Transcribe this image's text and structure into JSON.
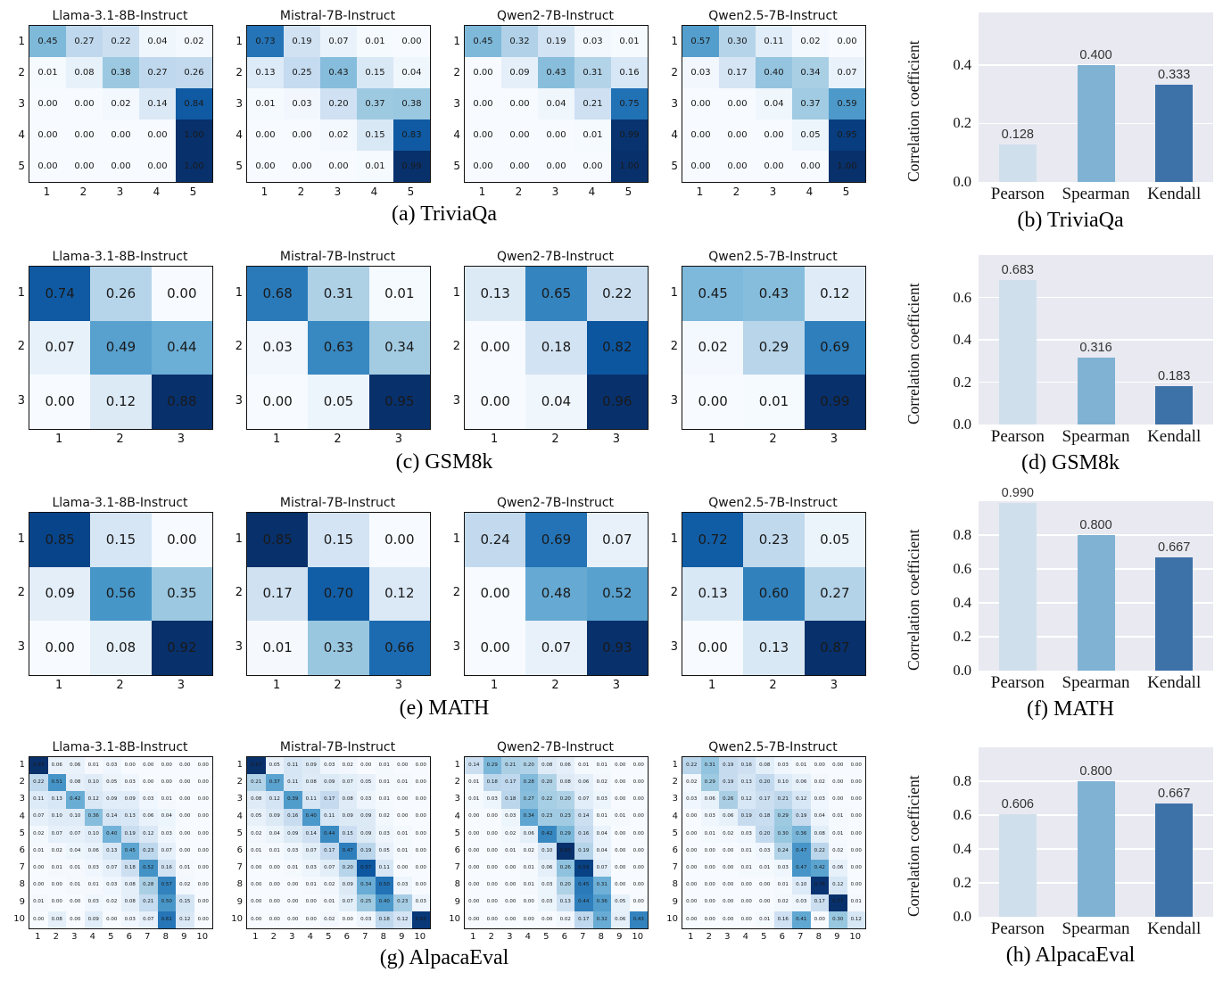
{
  "colors": {
    "heatmap_colormap": "Blues",
    "blues_anchors": [
      "#f7fbff",
      "#deebf7",
      "#c6dbef",
      "#9ecae1",
      "#6baed6",
      "#4292c6",
      "#2171b5",
      "#08519c",
      "#08306b"
    ],
    "heatmap_border": "#111111",
    "cell_text": "#1a1a1a",
    "bar_colors": [
      "#d0dfec",
      "#7fb2d3",
      "#3d72a8"
    ],
    "plot_bg": "#e9e9f1",
    "grid_color": "#ffffff"
  },
  "chart_data": [
    {
      "id": "a",
      "type": "heatmap",
      "caption": "(a) TriviaQa",
      "tick_labels": [
        "1",
        "2",
        "3",
        "4",
        "5"
      ],
      "heatmaps": [
        {
          "title": "Llama-3.1-8B-Instruct",
          "matrix": [
            [
              0.45,
              0.27,
              0.22,
              0.04,
              0.02
            ],
            [
              0.01,
              0.08,
              0.38,
              0.27,
              0.26
            ],
            [
              0.0,
              0.0,
              0.02,
              0.14,
              0.84
            ],
            [
              0.0,
              0.0,
              0.0,
              0.0,
              1.0
            ],
            [
              0.0,
              0.0,
              0.0,
              0.0,
              1.0
            ]
          ]
        },
        {
          "title": "Mistral-7B-Instruct",
          "matrix": [
            [
              0.73,
              0.19,
              0.07,
              0.01,
              0.0
            ],
            [
              0.13,
              0.25,
              0.43,
              0.15,
              0.04
            ],
            [
              0.01,
              0.03,
              0.2,
              0.37,
              0.38
            ],
            [
              0.0,
              0.0,
              0.02,
              0.15,
              0.83
            ],
            [
              0.0,
              0.0,
              0.0,
              0.01,
              0.99
            ]
          ]
        },
        {
          "title": "Qwen2-7B-Instruct",
          "matrix": [
            [
              0.45,
              0.32,
              0.19,
              0.03,
              0.01
            ],
            [
              0.0,
              0.09,
              0.43,
              0.31,
              0.16
            ],
            [
              0.0,
              0.0,
              0.04,
              0.21,
              0.75
            ],
            [
              0.0,
              0.0,
              0.0,
              0.01,
              0.99
            ],
            [
              0.0,
              0.0,
              0.0,
              0.0,
              1.0
            ]
          ]
        },
        {
          "title": "Qwen2.5-7B-Instruct",
          "matrix": [
            [
              0.57,
              0.3,
              0.11,
              0.02,
              0.0
            ],
            [
              0.03,
              0.17,
              0.4,
              0.34,
              0.07
            ],
            [
              0.0,
              0.0,
              0.04,
              0.37,
              0.59
            ],
            [
              0.0,
              0.0,
              0.0,
              0.05,
              0.95
            ],
            [
              0.0,
              0.0,
              0.0,
              0.0,
              1.0
            ]
          ]
        }
      ]
    },
    {
      "id": "b",
      "type": "bar",
      "caption": "(b) TriviaQa",
      "ylabel": "Correlation coefficient",
      "categories": [
        "Pearson",
        "Spearman",
        "Kendall"
      ],
      "values": [
        0.128,
        0.4,
        0.333
      ],
      "value_labels": [
        "0.128",
        "0.400",
        "0.333"
      ],
      "ytick_labels": [
        "0.0",
        "0.2",
        "0.4"
      ],
      "ytick_values": [
        0,
        0.2,
        0.4
      ],
      "ylim": [
        0,
        0.58
      ]
    },
    {
      "id": "c",
      "type": "heatmap",
      "caption": "(c) GSM8k",
      "tick_labels": [
        "1",
        "2",
        "3"
      ],
      "heatmaps": [
        {
          "title": "Llama-3.1-8B-Instruct",
          "matrix": [
            [
              0.74,
              0.26,
              0.0
            ],
            [
              0.07,
              0.49,
              0.44
            ],
            [
              0.0,
              0.12,
              0.88
            ]
          ]
        },
        {
          "title": "Mistral-7B-Instruct",
          "matrix": [
            [
              0.68,
              0.31,
              0.01
            ],
            [
              0.03,
              0.63,
              0.34
            ],
            [
              0.0,
              0.05,
              0.95
            ]
          ]
        },
        {
          "title": "Qwen2-7B-Instruct",
          "matrix": [
            [
              0.13,
              0.65,
              0.22
            ],
            [
              0.0,
              0.18,
              0.82
            ],
            [
              0.0,
              0.04,
              0.96
            ]
          ]
        },
        {
          "title": "Qwen2.5-7B-Instruct",
          "matrix": [
            [
              0.45,
              0.43,
              0.12
            ],
            [
              0.02,
              0.29,
              0.69
            ],
            [
              0.0,
              0.01,
              0.99
            ]
          ]
        }
      ]
    },
    {
      "id": "d",
      "type": "bar",
      "caption": "(d) GSM8k",
      "ylabel": "Correlation coefficient",
      "categories": [
        "Pearson",
        "Spearman",
        "Kendall"
      ],
      "values": [
        0.683,
        0.316,
        0.183
      ],
      "value_labels": [
        "0.683",
        "0.316",
        "0.183"
      ],
      "ytick_labels": [
        "0.0",
        "0.2",
        "0.4",
        "0.6"
      ],
      "ytick_values": [
        0,
        0.2,
        0.4,
        0.6
      ],
      "ylim": [
        0,
        0.8
      ]
    },
    {
      "id": "e",
      "type": "heatmap",
      "caption": "(e) MATH",
      "tick_labels": [
        "1",
        "2",
        "3"
      ],
      "heatmaps": [
        {
          "title": "Llama-3.1-8B-Instruct",
          "matrix": [
            [
              0.85,
              0.15,
              0.0
            ],
            [
              0.09,
              0.56,
              0.35
            ],
            [
              0.0,
              0.08,
              0.92
            ]
          ]
        },
        {
          "title": "Mistral-7B-Instruct",
          "matrix": [
            [
              0.85,
              0.15,
              0.0
            ],
            [
              0.17,
              0.7,
              0.12
            ],
            [
              0.01,
              0.33,
              0.66
            ]
          ]
        },
        {
          "title": "Qwen2-7B-Instruct",
          "matrix": [
            [
              0.24,
              0.69,
              0.07
            ],
            [
              0.0,
              0.48,
              0.52
            ],
            [
              0.0,
              0.07,
              0.93
            ]
          ]
        },
        {
          "title": "Qwen2.5-7B-Instruct",
          "matrix": [
            [
              0.72,
              0.23,
              0.05
            ],
            [
              0.13,
              0.6,
              0.27
            ],
            [
              0.0,
              0.13,
              0.87
            ]
          ]
        }
      ]
    },
    {
      "id": "f",
      "type": "bar",
      "caption": "(f) MATH",
      "ylabel": "Correlation coefficient",
      "categories": [
        "Pearson",
        "Spearman",
        "Kendall"
      ],
      "values": [
        0.99,
        0.8,
        0.667
      ],
      "value_labels": [
        "0.990",
        "0.800",
        "0.667"
      ],
      "ytick_labels": [
        "0.0",
        "0.2",
        "0.4",
        "0.6",
        "0.8"
      ],
      "ytick_values": [
        0,
        0.2,
        0.4,
        0.6,
        0.8
      ],
      "ylim": [
        0,
        1.0
      ]
    },
    {
      "id": "g",
      "type": "heatmap",
      "caption": "(g) AlpacaEval",
      "tick_labels": [
        "1",
        "2",
        "3",
        "4",
        "5",
        "6",
        "7",
        "8",
        "9",
        "10"
      ],
      "heatmaps": [
        {
          "title": "Llama-3.1-8B-Instruct",
          "matrix": [
            [
              0.83,
              0.06,
              0.06,
              0.01,
              0.03,
              0.0,
              0.0,
              0.0,
              0.0,
              0.0
            ],
            [
              0.22,
              0.51,
              0.08,
              0.1,
              0.05,
              0.03,
              0.0,
              0.0,
              0.0,
              0.0
            ],
            [
              0.11,
              0.13,
              0.42,
              0.12,
              0.09,
              0.09,
              0.03,
              0.01,
              0.0,
              0.0
            ],
            [
              0.07,
              0.1,
              0.1,
              0.36,
              0.14,
              0.13,
              0.06,
              0.04,
              0.0,
              0.0
            ],
            [
              0.02,
              0.07,
              0.07,
              0.1,
              0.4,
              0.19,
              0.12,
              0.03,
              0.0,
              0.0
            ],
            [
              0.01,
              0.02,
              0.04,
              0.06,
              0.13,
              0.45,
              0.23,
              0.07,
              0.0,
              0.0
            ],
            [
              0.0,
              0.01,
              0.01,
              0.03,
              0.07,
              0.18,
              0.52,
              0.16,
              0.01,
              0.0
            ],
            [
              0.0,
              0.0,
              0.01,
              0.01,
              0.03,
              0.08,
              0.28,
              0.57,
              0.02,
              0.0
            ],
            [
              0.01,
              0.0,
              0.0,
              0.03,
              0.02,
              0.08,
              0.21,
              0.5,
              0.15,
              0.0
            ],
            [
              0.0,
              0.08,
              0.0,
              0.09,
              0.0,
              0.03,
              0.07,
              0.61,
              0.12,
              0.0
            ]
          ]
        },
        {
          "title": "Mistral-7B-Instruct",
          "matrix": [
            [
              0.67,
              0.05,
              0.11,
              0.09,
              0.03,
              0.02,
              0.0,
              0.01,
              0.0,
              0.0
            ],
            [
              0.21,
              0.37,
              0.11,
              0.08,
              0.09,
              0.07,
              0.05,
              0.01,
              0.01,
              0.0
            ],
            [
              0.08,
              0.12,
              0.39,
              0.11,
              0.17,
              0.08,
              0.03,
              0.01,
              0.0,
              0.0
            ],
            [
              0.05,
              0.09,
              0.16,
              0.4,
              0.11,
              0.09,
              0.09,
              0.02,
              0.0,
              0.0
            ],
            [
              0.02,
              0.04,
              0.09,
              0.14,
              0.44,
              0.15,
              0.09,
              0.03,
              0.01,
              0.0
            ],
            [
              0.01,
              0.01,
              0.03,
              0.07,
              0.17,
              0.47,
              0.19,
              0.05,
              0.01,
              0.0
            ],
            [
              0.0,
              0.0,
              0.01,
              0.03,
              0.07,
              0.2,
              0.57,
              0.11,
              0.0,
              0.0
            ],
            [
              0.0,
              0.0,
              0.0,
              0.01,
              0.02,
              0.09,
              0.34,
              0.5,
              0.03,
              0.0
            ],
            [
              0.0,
              0.0,
              0.0,
              0.0,
              0.01,
              0.07,
              0.25,
              0.4,
              0.23,
              0.03
            ],
            [
              0.0,
              0.0,
              0.0,
              0.0,
              0.02,
              0.0,
              0.03,
              0.18,
              0.12,
              0.65
            ]
          ]
        },
        {
          "title": "Qwen2-7B-Instruct",
          "matrix": [
            [
              0.14,
              0.29,
              0.21,
              0.2,
              0.08,
              0.06,
              0.01,
              0.01,
              0.0,
              0.0
            ],
            [
              0.01,
              0.18,
              0.17,
              0.28,
              0.2,
              0.08,
              0.06,
              0.02,
              0.0,
              0.0
            ],
            [
              0.01,
              0.03,
              0.18,
              0.27,
              0.22,
              0.2,
              0.07,
              0.03,
              0.0,
              0.0
            ],
            [
              0.0,
              0.0,
              0.03,
              0.34,
              0.23,
              0.23,
              0.14,
              0.01,
              0.01,
              0.0
            ],
            [
              0.0,
              0.0,
              0.02,
              0.06,
              0.42,
              0.29,
              0.16,
              0.04,
              0.0,
              0.0
            ],
            [
              0.0,
              0.0,
              0.01,
              0.02,
              0.1,
              0.63,
              0.19,
              0.04,
              0.0,
              0.0
            ],
            [
              0.0,
              0.0,
              0.0,
              0.01,
              0.06,
              0.26,
              0.59,
              0.07,
              0.0,
              0.0
            ],
            [
              0.0,
              0.0,
              0.0,
              0.01,
              0.03,
              0.2,
              0.45,
              0.31,
              0.0,
              0.0
            ],
            [
              0.0,
              0.0,
              0.0,
              0.0,
              0.03,
              0.13,
              0.44,
              0.36,
              0.05,
              0.0
            ],
            [
              0.0,
              0.0,
              0.0,
              0.0,
              0.0,
              0.02,
              0.17,
              0.32,
              0.06,
              0.43
            ]
          ]
        },
        {
          "title": "Qwen2.5-7B-Instruct",
          "matrix": [
            [
              0.22,
              0.31,
              0.19,
              0.16,
              0.08,
              0.03,
              0.01,
              0.0,
              0.0,
              0.0
            ],
            [
              0.02,
              0.29,
              0.19,
              0.13,
              0.2,
              0.1,
              0.06,
              0.02,
              0.0,
              0.0
            ],
            [
              0.03,
              0.06,
              0.26,
              0.12,
              0.17,
              0.21,
              0.12,
              0.03,
              0.0,
              0.0
            ],
            [
              0.0,
              0.03,
              0.06,
              0.19,
              0.18,
              0.29,
              0.19,
              0.04,
              0.01,
              0.0
            ],
            [
              0.0,
              0.01,
              0.02,
              0.03,
              0.2,
              0.3,
              0.36,
              0.08,
              0.01,
              0.0
            ],
            [
              0.0,
              0.0,
              0.0,
              0.01,
              0.03,
              0.24,
              0.47,
              0.22,
              0.02,
              0.0
            ],
            [
              0.0,
              0.0,
              0.0,
              0.01,
              0.01,
              0.03,
              0.47,
              0.42,
              0.06,
              0.0
            ],
            [
              0.0,
              0.0,
              0.0,
              0.0,
              0.0,
              0.01,
              0.1,
              0.76,
              0.12,
              0.0
            ],
            [
              0.0,
              0.0,
              0.0,
              0.0,
              0.0,
              0.02,
              0.03,
              0.17,
              0.77,
              0.01
            ],
            [
              0.0,
              0.0,
              0.0,
              0.0,
              0.01,
              0.16,
              0.41,
              0.0,
              0.3,
              0.12
            ]
          ]
        }
      ]
    },
    {
      "id": "h",
      "type": "bar",
      "caption": "(h) AlpacaEval",
      "ylabel": "Correlation coefficient",
      "categories": [
        "Pearson",
        "Spearman",
        "Kendall"
      ],
      "values": [
        0.606,
        0.8,
        0.667
      ],
      "value_labels": [
        "0.606",
        "0.800",
        "0.667"
      ],
      "ytick_labels": [
        "0.0",
        "0.2",
        "0.4",
        "0.6",
        "0.8"
      ],
      "ytick_values": [
        0,
        0.2,
        0.4,
        0.6,
        0.8
      ],
      "ylim": [
        0,
        1.0
      ]
    }
  ]
}
